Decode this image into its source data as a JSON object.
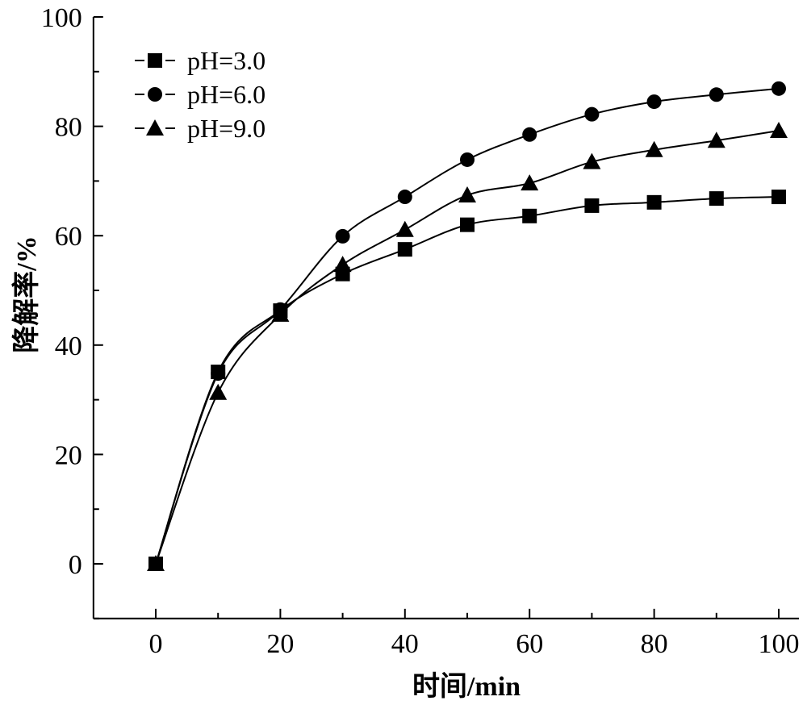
{
  "chart_data": {
    "type": "line",
    "title": "",
    "xlabel": "时间/min",
    "ylabel": "降解率/%",
    "xlim": [
      -10,
      103
    ],
    "ylim": [
      -10,
      100
    ],
    "xticks": [
      0,
      20,
      40,
      60,
      80,
      100
    ],
    "yticks": [
      0,
      20,
      40,
      60,
      80,
      100
    ],
    "xtick_labels": [
      "0",
      "20",
      "40",
      "60",
      "80",
      "100"
    ],
    "ytick_labels": [
      "0",
      "20",
      "40",
      "60",
      "80",
      "100"
    ],
    "grid": false,
    "legend_position": "top-left",
    "x": [
      0,
      10,
      20,
      30,
      40,
      50,
      60,
      70,
      80,
      90,
      100
    ],
    "series": [
      {
        "name": "pH=3.0",
        "marker": "square",
        "values": [
          0,
          35.1,
          46.3,
          53.0,
          57.5,
          62.0,
          63.6,
          65.5,
          66.1,
          66.8,
          67.1
        ]
      },
      {
        "name": "pH=6.0",
        "marker": "circle",
        "values": [
          0,
          34.8,
          46.5,
          59.9,
          67.1,
          73.9,
          78.5,
          82.2,
          84.5,
          85.8,
          86.9
        ]
      },
      {
        "name": "pH=9.0",
        "marker": "triangle",
        "values": [
          0,
          31.3,
          45.6,
          54.7,
          61.1,
          67.4,
          69.6,
          73.5,
          75.7,
          77.4,
          79.2
        ]
      }
    ],
    "color": "#000000"
  }
}
